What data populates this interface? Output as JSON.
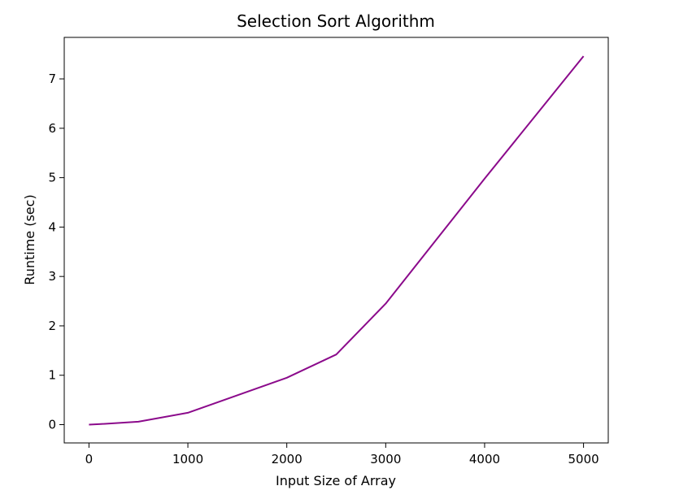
{
  "chart_data": {
    "type": "line",
    "title": "Selection Sort Algorithm",
    "xlabel": "Input Size of Array",
    "ylabel": "Runtime (sec)",
    "xlim": [
      -250,
      5250
    ],
    "ylim": [
      -0.37,
      7.84
    ],
    "xticks": [
      0,
      1000,
      2000,
      3000,
      4000,
      5000
    ],
    "yticks": [
      0,
      1,
      2,
      3,
      4,
      5,
      6,
      7
    ],
    "grid": false,
    "series": [
      {
        "color": "#8b0a8b",
        "x": [
          0,
          100,
          500,
          1000,
          2000,
          2500,
          3000,
          4000,
          5000
        ],
        "y": [
          0.0,
          0.01,
          0.06,
          0.24,
          0.95,
          1.42,
          2.45,
          4.98,
          7.46
        ]
      }
    ]
  }
}
